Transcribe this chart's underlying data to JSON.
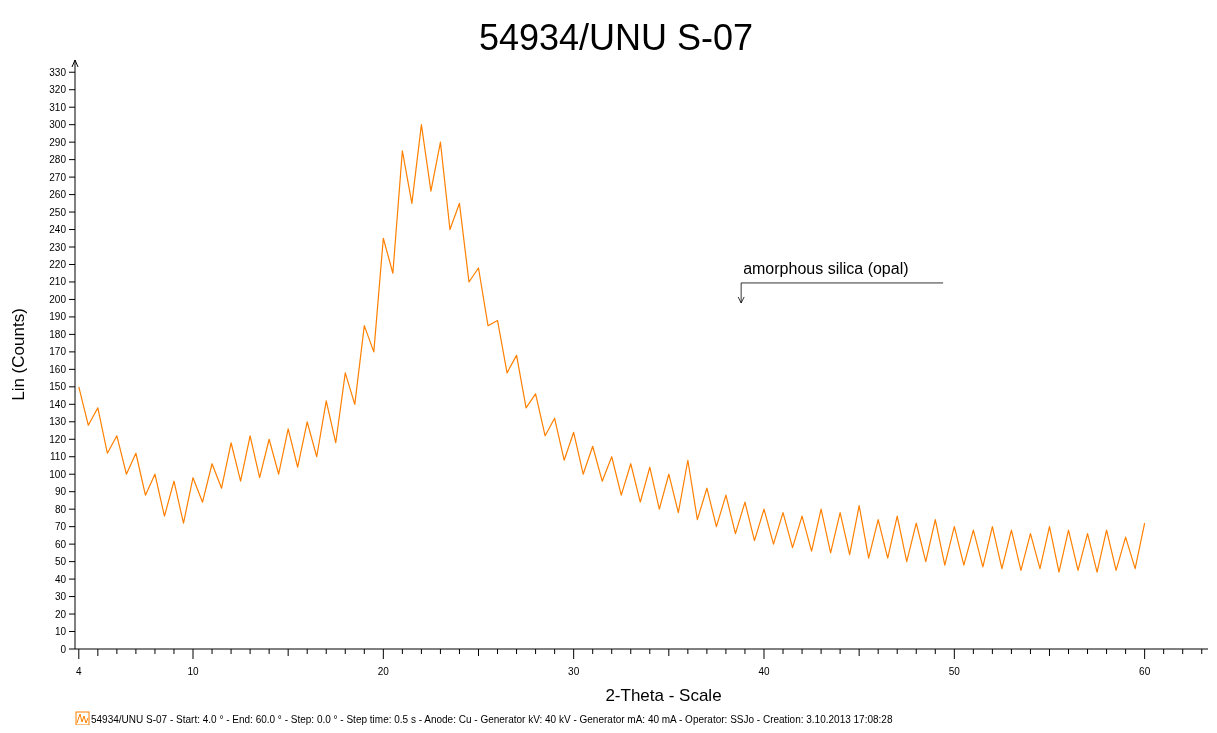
{
  "chart_data": {
    "type": "line",
    "title": "54934/UNU S-07",
    "xlabel": "2-Theta - Scale",
    "ylabel": "Lin (Counts)",
    "xlim": [
      3.8,
      64.8
    ],
    "ylim": [
      0,
      337
    ],
    "xticks": [
      4,
      {
        "value": 5,
        "label": null
      },
      {
        "value": 6,
        "label": null
      },
      {
        "value": 7,
        "label": null
      },
      {
        "value": 8,
        "label": null
      },
      {
        "value": 9,
        "label": null
      },
      10,
      {
        "value": 11,
        "label": null
      },
      {
        "value": 12,
        "label": null
      },
      {
        "value": 13,
        "label": null
      },
      {
        "value": 14,
        "label": null
      },
      {
        "value": 15,
        "label": null
      },
      {
        "value": 16,
        "label": null
      },
      {
        "value": 17,
        "label": null
      },
      {
        "value": 18,
        "label": null
      },
      {
        "value": 19,
        "label": null
      },
      20,
      {
        "value": 21,
        "label": null
      },
      {
        "value": 22,
        "label": null
      },
      {
        "value": 23,
        "label": null
      },
      {
        "value": 24,
        "label": null
      },
      {
        "value": 25,
        "label": null
      },
      {
        "value": 26,
        "label": null
      },
      {
        "value": 27,
        "label": null
      },
      {
        "value": 28,
        "label": null
      },
      {
        "value": 29,
        "label": null
      },
      30,
      {
        "value": 31,
        "label": null
      },
      {
        "value": 32,
        "label": null
      },
      {
        "value": 33,
        "label": null
      },
      {
        "value": 34,
        "label": null
      },
      {
        "value": 35,
        "label": null
      },
      {
        "value": 36,
        "label": null
      },
      {
        "value": 37,
        "label": null
      },
      {
        "value": 38,
        "label": null
      },
      {
        "value": 39,
        "label": null
      },
      40,
      {
        "value": 41,
        "label": null
      },
      {
        "value": 42,
        "label": null
      },
      {
        "value": 43,
        "label": null
      },
      {
        "value": 44,
        "label": null
      },
      {
        "value": 45,
        "label": null
      },
      {
        "value": 46,
        "label": null
      },
      {
        "value": 47,
        "label": null
      },
      {
        "value": 48,
        "label": null
      },
      {
        "value": 49,
        "label": null
      },
      50,
      {
        "value": 51,
        "label": null
      },
      {
        "value": 52,
        "label": null
      },
      {
        "value": 53,
        "label": null
      },
      {
        "value": 54,
        "label": null
      },
      {
        "value": 55,
        "label": null
      },
      {
        "value": 56,
        "label": null
      },
      {
        "value": 57,
        "label": null
      },
      {
        "value": 58,
        "label": null
      },
      {
        "value": 59,
        "label": null
      },
      60,
      {
        "value": 61,
        "label": null
      },
      {
        "value": 62,
        "label": null
      },
      {
        "value": 63,
        "label": null
      },
      {
        "value": 64,
        "label": null
      }
    ],
    "yticks": [
      0,
      10,
      20,
      30,
      40,
      50,
      60,
      70,
      80,
      90,
      100,
      110,
      120,
      130,
      140,
      150,
      160,
      170,
      180,
      190,
      200,
      210,
      220,
      230,
      240,
      250,
      260,
      270,
      280,
      290,
      300,
      310,
      320,
      330
    ],
    "legend": "bottom",
    "annotations": [
      "amorphous silica (opal)"
    ],
    "series": [
      {
        "name": "54934/UNU S-07 - Start: 4.0 ° - End: 60.0 ° - Step: 0.0 ° - Step time: 0.5 s - Anode: Cu - Generator kV: 40 kV - Generator mA: 40 mA - Operator: SSJo - Creation: 3.10.2013 17:08:28",
        "color": "#ff8000",
        "x": [
          4,
          4.5,
          5,
          5.5,
          6,
          6.5,
          7,
          7.5,
          8,
          8.5,
          9,
          9.5,
          10,
          10.5,
          11,
          11.5,
          12,
          12.5,
          13,
          13.5,
          14,
          14.5,
          15,
          15.5,
          16,
          16.5,
          17,
          17.5,
          18,
          18.5,
          19,
          19.5,
          20,
          20.5,
          21,
          21.5,
          22,
          22.5,
          23,
          23.5,
          24,
          24.5,
          25,
          25.5,
          26,
          26.5,
          27,
          27.5,
          28,
          28.5,
          29,
          29.5,
          30,
          30.5,
          31,
          31.5,
          32,
          32.5,
          33,
          33.5,
          34,
          34.5,
          35,
          35.5,
          36,
          36.5,
          37,
          37.5,
          38,
          38.5,
          39,
          39.5,
          40,
          40.5,
          41,
          41.5,
          42,
          42.5,
          43,
          43.5,
          44,
          44.5,
          45,
          45.5,
          46,
          46.5,
          47,
          47.5,
          48,
          48.5,
          49,
          49.5,
          50,
          50.5,
          51,
          51.5,
          52,
          52.5,
          53,
          53.5,
          54,
          54.5,
          55,
          55.5,
          56,
          56.5,
          57,
          57.5,
          58,
          58.5,
          59,
          59.5,
          60
        ],
        "values": [
          150,
          128,
          138,
          112,
          122,
          100,
          112,
          88,
          100,
          76,
          96,
          72,
          98,
          84,
          106,
          92,
          118,
          96,
          122,
          98,
          120,
          100,
          126,
          104,
          130,
          110,
          142,
          118,
          158,
          140,
          185,
          170,
          235,
          215,
          285,
          255,
          300,
          262,
          290,
          240,
          255,
          210,
          218,
          185,
          188,
          158,
          168,
          138,
          146,
          122,
          132,
          108,
          124,
          100,
          116,
          96,
          110,
          88,
          106,
          84,
          104,
          80,
          100,
          78,
          108,
          74,
          92,
          70,
          88,
          66,
          84,
          62,
          80,
          60,
          78,
          58,
          76,
          56,
          80,
          55,
          78,
          54,
          82,
          52,
          74,
          52,
          76,
          50,
          72,
          50,
          74,
          48,
          70,
          48,
          68,
          47,
          70,
          46,
          68,
          45,
          66,
          46,
          70,
          44,
          68,
          45,
          66,
          44,
          68,
          45,
          64,
          46,
          72
        ]
      }
    ]
  }
}
